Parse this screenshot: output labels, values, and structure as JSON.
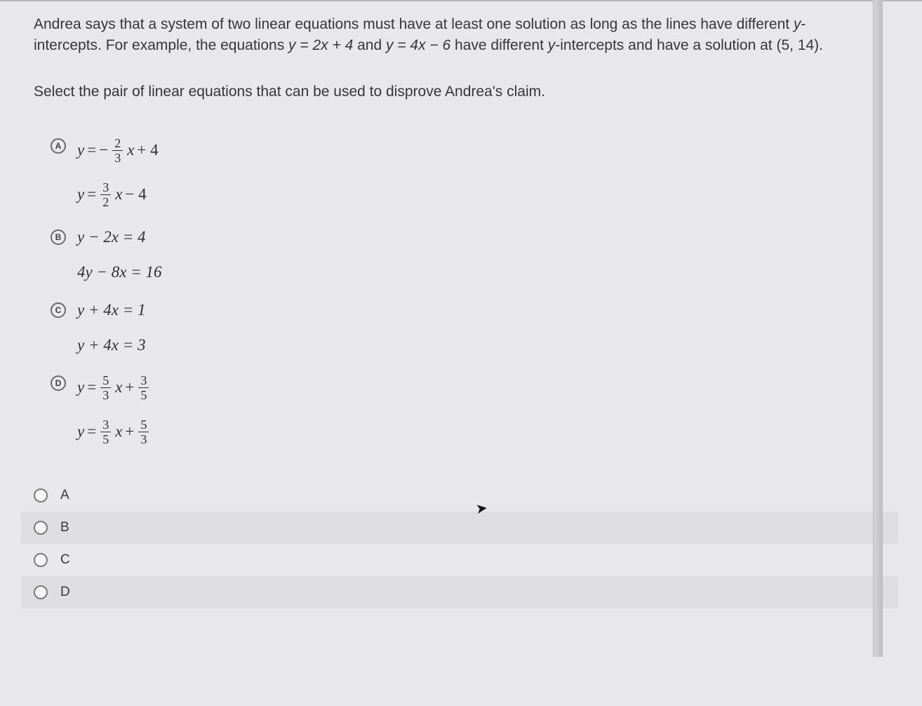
{
  "colors": {
    "page_bg": "#e8e8ea",
    "shade_bg": "#dedee0",
    "text": "#363638",
    "border_top": "#b8b8ba",
    "radio_border": "#7a7a7c",
    "marker_border": "#6a6a6c"
  },
  "stem": {
    "line1a": "Andrea says that a system of two linear equations must have at least one solution as long as the lines have different ",
    "yint": "y",
    "line1b": "-intercepts. For example, the equations ",
    "eq1": "y = 2x + 4",
    "mid": " and ",
    "eq2": "y = 4x − 6",
    "line1c": " have different ",
    "yint2": "y",
    "line1d": "-intercepts and have a solution at (5, 14)."
  },
  "prompt": "Select the pair of linear equations that can be used to disprove Andrea's claim.",
  "options": {
    "A": {
      "marker": "A",
      "eq1": {
        "lhs": "y",
        "eq": "=",
        "neg": "−",
        "num": "2",
        "den": "3",
        "var": "x",
        "tail": "+ 4"
      },
      "eq2": {
        "lhs": "y",
        "eq": "=",
        "num": "3",
        "den": "2",
        "var": "x",
        "tail": "− 4"
      }
    },
    "B": {
      "marker": "B",
      "eq1_text": "y − 2x = 4",
      "eq2_text": "4y − 8x = 16"
    },
    "C": {
      "marker": "C",
      "eq1_text": "y + 4x = 1",
      "eq2_text": "y + 4x = 3"
    },
    "D": {
      "marker": "D",
      "eq1": {
        "lhs": "y",
        "eq": "=",
        "num": "5",
        "den": "3",
        "var": "x",
        "tail_num": "3",
        "tail_den": "5"
      },
      "eq2": {
        "lhs": "y",
        "eq": "=",
        "num": "3",
        "den": "5",
        "var": "x",
        "tail_num": "5",
        "tail_den": "3"
      }
    }
  },
  "answers": [
    "A",
    "B",
    "C",
    "D"
  ]
}
